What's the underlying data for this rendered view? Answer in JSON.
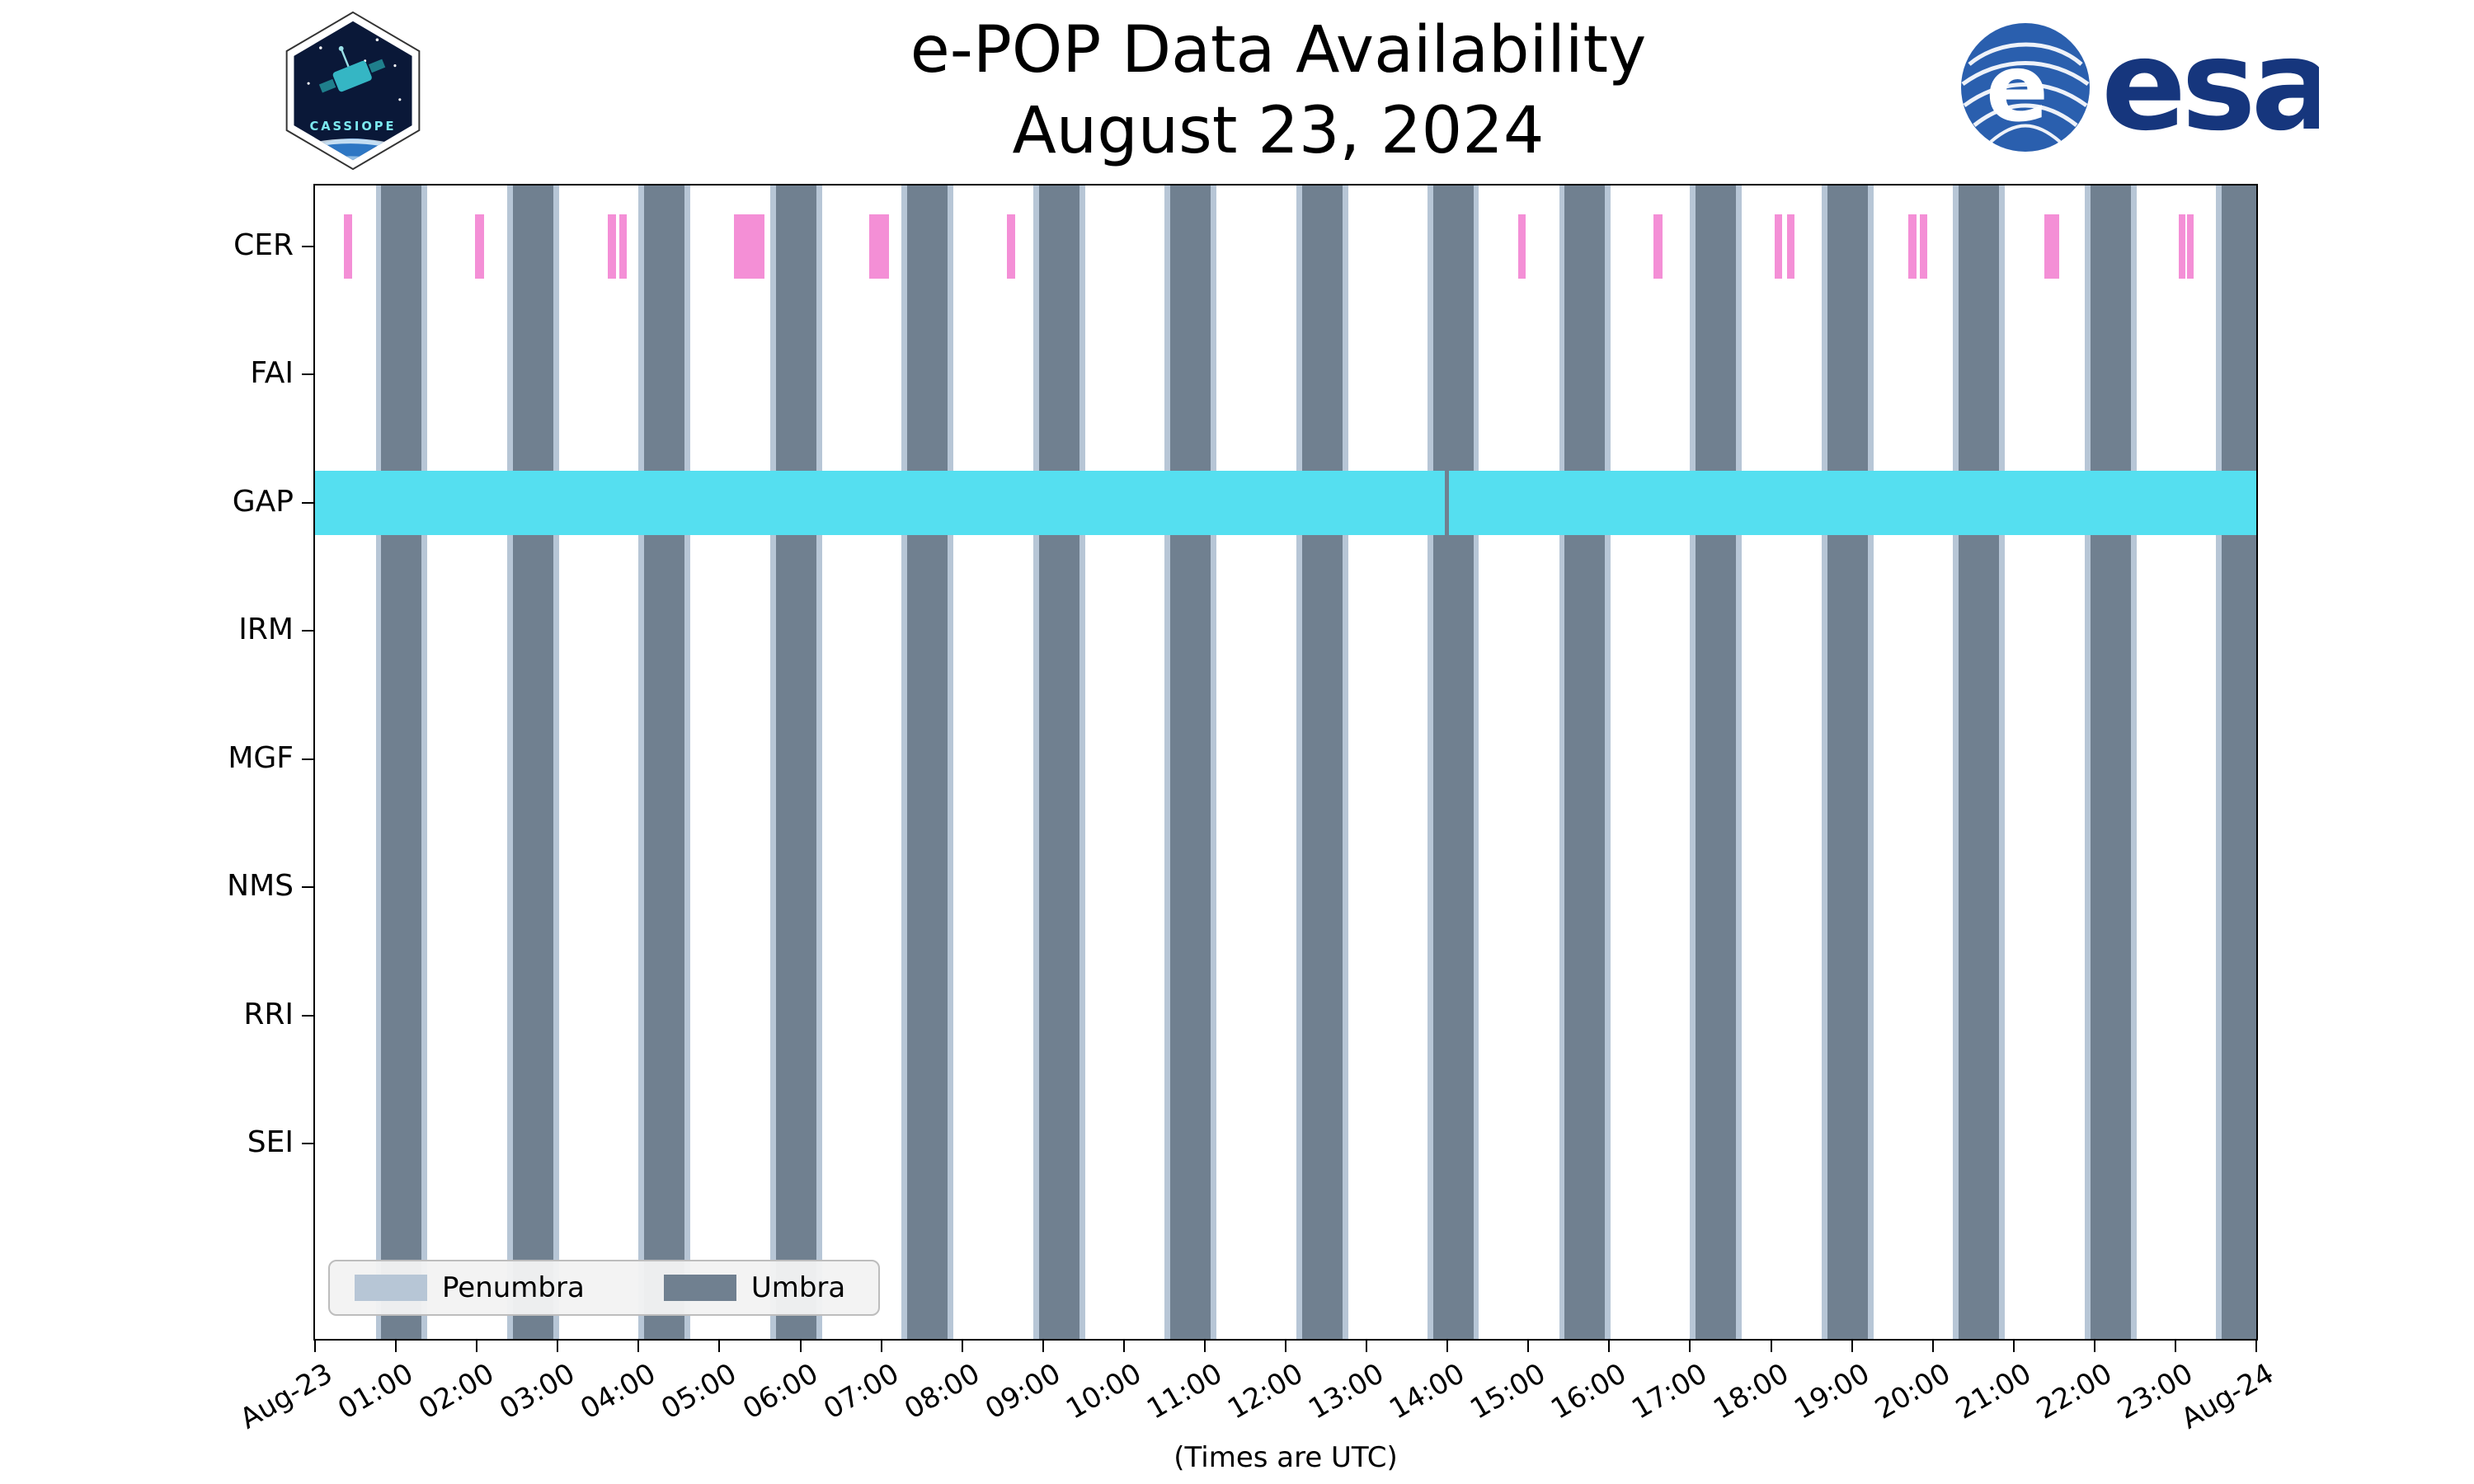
{
  "logos": {
    "cassiope_label": "CASSIOPE",
    "esa_wordmark": "esa",
    "esa_globe_letter": "e"
  },
  "chart_data": {
    "type": "gantt",
    "title": "e-POP Data Availability",
    "subtitle": "August 23, 2024",
    "xlabel": "(Times are UTC)",
    "x_unit": "hours UTC",
    "xlim": [
      0,
      24
    ],
    "x_tick_labels": [
      "Aug-23",
      "01:00",
      "02:00",
      "03:00",
      "04:00",
      "05:00",
      "06:00",
      "07:00",
      "08:00",
      "09:00",
      "10:00",
      "11:00",
      "12:00",
      "13:00",
      "14:00",
      "15:00",
      "16:00",
      "17:00",
      "18:00",
      "19:00",
      "20:00",
      "21:00",
      "22:00",
      "23:00",
      "Aug-24"
    ],
    "rows": [
      "CER",
      "FAI",
      "GAP",
      "IRM",
      "MGF",
      "NMS",
      "RRI",
      "SEI"
    ],
    "background_bands": {
      "umbra": {
        "color": "#708090",
        "intervals": [
          [
            0.82,
            1.32
          ],
          [
            2.45,
            2.95
          ],
          [
            4.07,
            4.57
          ],
          [
            5.7,
            6.2
          ],
          [
            7.32,
            7.82
          ],
          [
            8.95,
            9.45
          ],
          [
            10.57,
            11.07
          ],
          [
            12.2,
            12.7
          ],
          [
            13.82,
            14.32
          ],
          [
            15.45,
            15.95
          ],
          [
            17.07,
            17.57
          ],
          [
            18.7,
            19.2
          ],
          [
            20.32,
            20.82
          ],
          [
            21.95,
            22.45
          ],
          [
            23.57,
            24.0
          ]
        ]
      },
      "penumbra": {
        "color": "#b7c6d6",
        "pad_hours": 0.07
      }
    },
    "series": [
      {
        "row": "CER",
        "color": "#f48fd6",
        "intervals": [
          [
            0.36,
            0.46
          ],
          [
            1.98,
            2.09
          ],
          [
            3.62,
            3.72
          ],
          [
            3.76,
            3.85
          ],
          [
            5.18,
            5.56
          ],
          [
            6.85,
            7.1
          ],
          [
            8.55,
            8.66
          ],
          [
            14.88,
            14.97
          ],
          [
            16.55,
            16.66
          ],
          [
            18.05,
            18.14
          ],
          [
            18.2,
            18.29
          ],
          [
            19.7,
            19.8
          ],
          [
            19.84,
            19.93
          ],
          [
            21.38,
            21.56
          ],
          [
            23.04,
            23.11
          ],
          [
            23.14,
            23.23
          ]
        ]
      },
      {
        "row": "FAI",
        "color": "#f48fd6",
        "intervals": []
      },
      {
        "row": "GAP",
        "color": "#55dff0",
        "intervals": [
          [
            0.0,
            13.97
          ],
          [
            14.02,
            24.0
          ]
        ]
      },
      {
        "row": "IRM",
        "color": "#55dff0",
        "intervals": []
      },
      {
        "row": "MGF",
        "color": "#55dff0",
        "intervals": []
      },
      {
        "row": "NMS",
        "color": "#55dff0",
        "intervals": []
      },
      {
        "row": "RRI",
        "color": "#55dff0",
        "intervals": []
      },
      {
        "row": "SEI",
        "color": "#55dff0",
        "intervals": []
      }
    ],
    "legend": [
      {
        "label": "Penumbra",
        "color": "#b7c6d6"
      },
      {
        "label": "Umbra",
        "color": "#708090"
      }
    ],
    "grid": false,
    "legend_position": "lower left"
  }
}
